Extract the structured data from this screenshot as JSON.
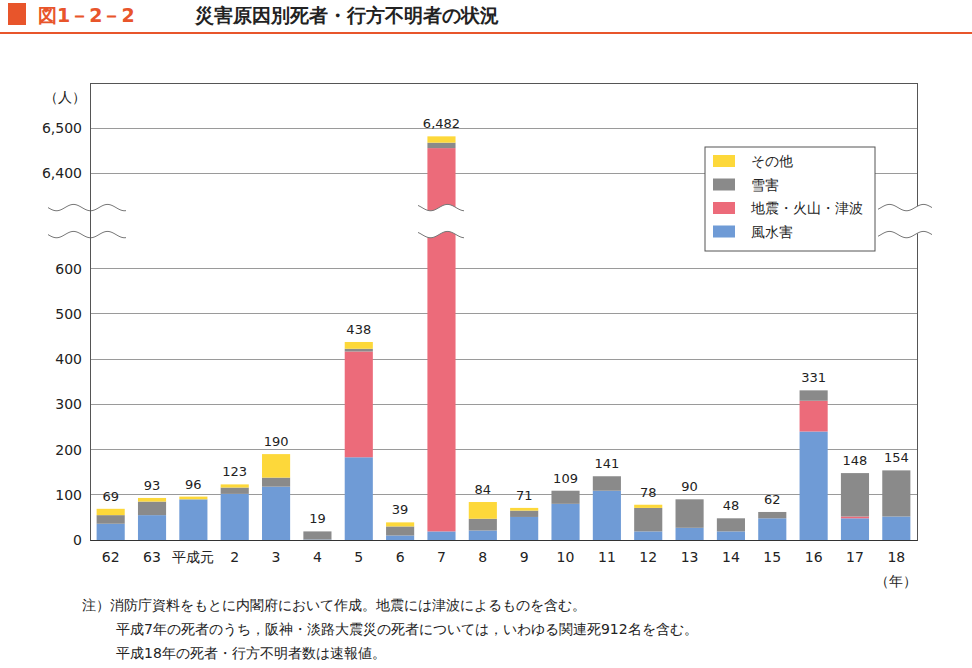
{
  "chart_data": {
    "type": "bar",
    "stacked": true,
    "figure_label": "図1－2－2",
    "title": "災害原因別死者・行方不明者の状況",
    "y_label": "（人）",
    "x_label": "（年）",
    "categories": [
      "62",
      "63",
      "平成元",
      "2",
      "3",
      "4",
      "5",
      "6",
      "7",
      "8",
      "9",
      "10",
      "11",
      "12",
      "13",
      "14",
      "15",
      "16",
      "17",
      "18"
    ],
    "series": [
      {
        "name": "風水害",
        "color": "#6f9bd6",
        "values": [
          36,
          55,
          90,
          102,
          118,
          1,
          183,
          10,
          19,
          21,
          51,
          80,
          109,
          19,
          27,
          19,
          48,
          240,
          48,
          52
        ]
      },
      {
        "name": "地震・火山・津波",
        "color": "#ec6b7a",
        "values": [
          0,
          0,
          0,
          0,
          0,
          0,
          234,
          0,
          6437,
          0,
          0,
          0,
          0,
          0,
          0,
          0,
          0,
          68,
          4,
          0
        ]
      },
      {
        "name": "雪害",
        "color": "#8a8a8a",
        "values": [
          19,
          30,
          0,
          14,
          20,
          18,
          6,
          20,
          12,
          26,
          14,
          29,
          32,
          52,
          63,
          29,
          14,
          23,
          96,
          102
        ]
      },
      {
        "name": "その他",
        "color": "#fdd83a",
        "values": [
          14,
          8,
          6,
          7,
          52,
          0,
          15,
          9,
          14,
          37,
          6,
          0,
          0,
          7,
          0,
          0,
          0,
          0,
          0,
          0
        ]
      }
    ],
    "totals": [
      69,
      93,
      96,
      123,
      190,
      19,
      438,
      39,
      6482,
      84,
      71,
      109,
      141,
      78,
      90,
      48,
      62,
      331,
      148,
      154
    ],
    "total_labels": [
      "69",
      "93",
      "96",
      "123",
      "190",
      "19",
      "438",
      "39",
      "6,482",
      "84",
      "71",
      "109",
      "141",
      "78",
      "90",
      "48",
      "62",
      "331",
      "148",
      "154"
    ],
    "ylim": [
      0,
      6600
    ],
    "axis_break": [
      680,
      6320
    ],
    "yticks": [
      0,
      100,
      200,
      300,
      400,
      500,
      600,
      {
        "value": 6400,
        "label": "6,400"
      },
      {
        "value": 6500,
        "label": "6,500"
      }
    ],
    "grid": true,
    "legend": "top-right",
    "annotations": [
      "注）消防庁資料をもとに内閣府において作成。地震には津波によるものを含む。",
      "平成7年の死者のうち，阪神・淡路大震災の死者については，いわゆる関連死912名を含む。",
      "平成18年の死者・行方不明者数は速報値。"
    ]
  }
}
